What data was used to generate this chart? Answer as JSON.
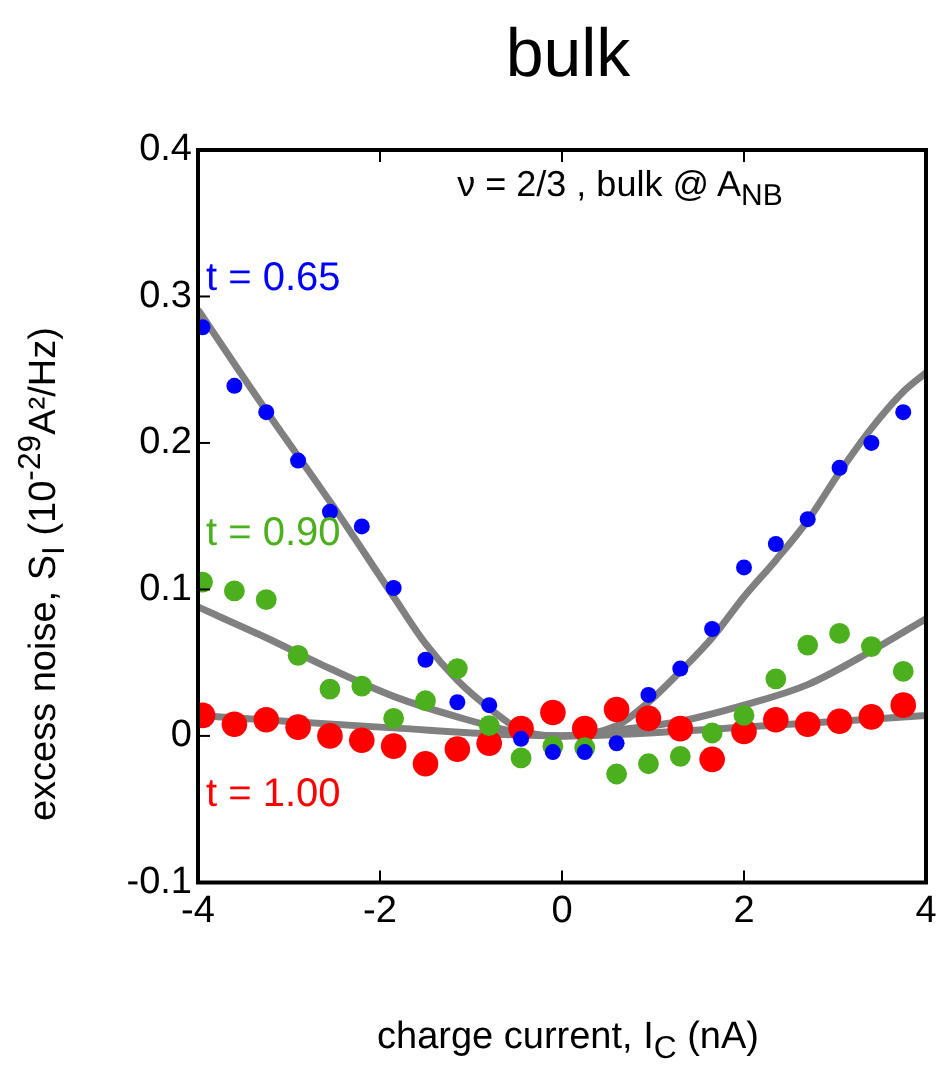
{
  "chart_data": {
    "type": "scatter",
    "title": "bulk",
    "xlabel": "charge current, I$_{C}$ (nA)",
    "ylabel": "excess noise, S$_{I}$ (10$^{-29}$A²/Hz)",
    "annotations": [
      "ν = 2/3 , bulk @ A$_{NB}$"
    ],
    "x": [
      -3.95,
      -3.6,
      -3.25,
      -2.9,
      -2.55,
      -2.2,
      -1.85,
      -1.5,
      -1.15,
      -0.8,
      -0.45,
      -0.1,
      0.25,
      0.6,
      0.95,
      1.3,
      1.65,
      2.0,
      2.35,
      2.7,
      3.05,
      3.4,
      3.75
    ],
    "xlim": [
      -4,
      4
    ],
    "xticks": [
      -4,
      -2,
      0,
      2,
      4
    ],
    "ylim": [
      -0.1,
      0.4
    ],
    "yticks": [
      -0.1,
      0,
      0.1,
      0.2,
      0.3,
      0.4
    ],
    "grid": false,
    "legend": false,
    "marker": "circle",
    "series": [
      {
        "name": "t = 0.65",
        "color": "#0000ff",
        "values": [
          0.279,
          0.239,
          0.221,
          0.188,
          0.153,
          0.143,
          0.101,
          0.052,
          0.023,
          0.021,
          -0.002,
          -0.011,
          -0.011,
          -0.005,
          0.028,
          0.046,
          0.073,
          0.115,
          0.131,
          0.148,
          0.183,
          0.2,
          0.221
        ]
      },
      {
        "name": "t = 0.90",
        "color": "#4caf1e",
        "values": [
          0.105,
          0.099,
          0.093,
          0.055,
          0.032,
          0.034,
          0.012,
          0.024,
          0.046,
          0.007,
          -0.015,
          -0.007,
          -0.008,
          -0.026,
          -0.019,
          -0.014,
          0.002,
          0.014,
          0.039,
          0.062,
          0.07,
          0.061,
          0.044
        ]
      },
      {
        "name": "t = 1.00",
        "color": "#ff0000",
        "values": [
          0.014,
          0.008,
          0.011,
          0.006,
          0,
          -0.003,
          -0.007,
          -0.019,
          -0.009,
          -0.005,
          0.005,
          0.016,
          0.005,
          0.018,
          0.012,
          0.005,
          -0.016,
          0.003,
          0.011,
          0.008,
          0.01,
          0.013,
          0.021
        ]
      },
      {
        "type": "line",
        "color": "#808080",
        "marker": "none",
        "x": [
          -4,
          -3.25,
          -2.55,
          -1.85,
          -1.5,
          -1.15,
          -0.8,
          -0.45,
          0,
          0.6,
          0.95,
          1.3,
          1.65,
          2.0,
          2.35,
          2.7,
          3.05,
          3.4,
          3.75,
          4
        ],
        "values": [
          0.291,
          0.222,
          0.16,
          0.095,
          0.063,
          0.038,
          0.019,
          0.004,
          0,
          0.007,
          0.023,
          0.044,
          0.067,
          0.095,
          0.12,
          0.147,
          0.18,
          0.21,
          0.235,
          0.248
        ]
      },
      {
        "type": "line",
        "color": "#808080",
        "marker": "none",
        "x": [
          -4,
          -3.25,
          -2.55,
          -1.85,
          -1.15,
          -0.45,
          0,
          0.6,
          1.3,
          2.0,
          2.7,
          3.4,
          4
        ],
        "values": [
          0.088,
          0.067,
          0.046,
          0.027,
          0.013,
          0.002,
          0,
          0.004,
          0.01,
          0.021,
          0.035,
          0.058,
          0.08
        ]
      },
      {
        "type": "line",
        "color": "#808080",
        "marker": "none",
        "x": [
          -4,
          -2,
          0,
          2,
          4
        ],
        "values": [
          0.014,
          0.006,
          0,
          0.006,
          0.014
        ]
      }
    ]
  }
}
